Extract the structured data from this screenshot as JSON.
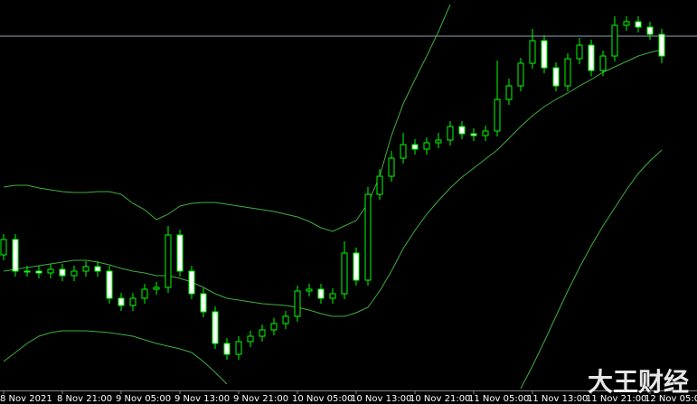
{
  "chart_data": {
    "type": "candlestick",
    "categories": [
      "8 Nov 2021",
      null,
      null,
      null,
      null,
      "8 Nov 21:00",
      null,
      null,
      null,
      null,
      "9 Nov 05:00",
      null,
      null,
      null,
      null,
      "9 Nov 13:00",
      null,
      null,
      null,
      null,
      "9 Nov 21:00",
      null,
      null,
      null,
      null,
      "10 Nov 05:00",
      null,
      null,
      null,
      null,
      "10 Nov 13:00",
      null,
      null,
      null,
      null,
      "10 Nov 21:00",
      null,
      null,
      null,
      null,
      "11 Nov 05:00",
      null,
      null,
      null,
      null,
      "11 Nov 13:00",
      null,
      null,
      null,
      null,
      "11 Nov 21:00",
      null,
      null,
      null,
      null,
      "12 Nov 05:00",
      null
    ],
    "open": [
      150,
      167,
      132,
      132,
      130,
      134,
      127,
      132,
      137,
      132,
      102,
      94,
      102,
      112,
      114,
      172,
      132,
      107,
      87,
      52,
      40,
      54,
      60,
      67,
      74,
      82,
      110,
      112,
      102,
      107,
      152,
      122,
      217,
      237,
      257,
      272,
      267,
      274,
      277,
      292,
      284,
      282,
      287,
      322,
      337,
      362,
      387,
      357,
      337,
      367,
      382,
      354,
      370,
      404,
      408,
      402,
      394
    ],
    "close": [
      167,
      132,
      132,
      130,
      134,
      127,
      132,
      137,
      132,
      102,
      94,
      102,
      112,
      114,
      172,
      132,
      107,
      87,
      52,
      40,
      54,
      60,
      67,
      74,
      82,
      110,
      112,
      102,
      107,
      152,
      122,
      217,
      237,
      257,
      272,
      267,
      274,
      277,
      292,
      284,
      282,
      287,
      322,
      337,
      362,
      387,
      357,
      337,
      367,
      382,
      354,
      370,
      404,
      408,
      402,
      394,
      370
    ],
    "high": [
      173,
      173,
      138,
      138,
      140,
      140,
      138,
      143,
      143,
      138,
      108,
      108,
      118,
      120,
      182,
      178,
      138,
      113,
      93,
      58,
      60,
      66,
      73,
      80,
      88,
      116,
      118,
      118,
      113,
      165,
      158,
      225,
      245,
      265,
      285,
      278,
      280,
      285,
      298,
      298,
      290,
      293,
      365,
      345,
      368,
      400,
      393,
      363,
      373,
      390,
      388,
      376,
      414,
      414,
      414,
      408,
      400
    ],
    "low": [
      144,
      126,
      126,
      124,
      124,
      121,
      121,
      126,
      126,
      96,
      88,
      88,
      96,
      106,
      108,
      126,
      101,
      81,
      46,
      34,
      34,
      48,
      54,
      61,
      68,
      76,
      104,
      96,
      96,
      101,
      116,
      116,
      211,
      231,
      251,
      261,
      261,
      268,
      271,
      278,
      276,
      276,
      281,
      316,
      331,
      356,
      351,
      331,
      331,
      361,
      348,
      348,
      364,
      398,
      396,
      388,
      362
    ],
    "up_color": "#000000",
    "down_color": "#ffffff",
    "outline_color": "#00ff00",
    "bands": [
      {
        "name": "upper",
        "color": "#3fae3f",
        "values": [
          225,
          227,
          227,
          224,
          222,
          220,
          219,
          219,
          220,
          220,
          217,
          207,
          200,
          189,
          195,
          204,
          207,
          208,
          208,
          206,
          204,
          202,
          200,
          198,
          195,
          192,
          187,
          180,
          176,
          182,
          188,
          207,
          237,
          282,
          317,
          344,
          370,
          397,
          427,
          null,
          null,
          null,
          null,
          null,
          null,
          null,
          null,
          null,
          null,
          null,
          null,
          null,
          null,
          null,
          null,
          null,
          null
        ]
      },
      {
        "name": "middle",
        "color": "#3fae3f",
        "values": [
          132,
          134,
          136,
          138,
          140,
          142,
          144,
          144,
          142,
          139,
          135,
          132,
          130,
          127,
          127,
          124,
          120,
          114,
          107,
          102,
          100,
          98,
          96,
          95,
          94,
          92,
          89,
          85,
          82,
          82,
          86,
          92,
          110,
          132,
          157,
          177,
          195,
          210,
          224,
          236,
          246,
          256,
          266,
          279,
          292,
          304,
          314,
          322,
          329,
          337,
          344,
          352,
          358,
          364,
          370,
          374,
          377
        ]
      },
      {
        "name": "lower",
        "color": "#3fae3f",
        "values": [
          32,
          42,
          52,
          60,
          64,
          66,
          66,
          66,
          65,
          64,
          62,
          60,
          56,
          52,
          49,
          46,
          42,
          32,
          20,
          7,
          null,
          null,
          null,
          null,
          null,
          null,
          null,
          null,
          null,
          null,
          null,
          null,
          null,
          null,
          null,
          null,
          null,
          null,
          null,
          null,
          null,
          null,
          null,
          null,
          2,
          27,
          54,
          82,
          110,
          136,
          160,
          182,
          202,
          222,
          240,
          254,
          266
        ]
      }
    ],
    "price_line": 392,
    "price_line_color": "#8fa4b8",
    "ylim": [
      0,
      432
    ],
    "watermark": "大王财经"
  }
}
